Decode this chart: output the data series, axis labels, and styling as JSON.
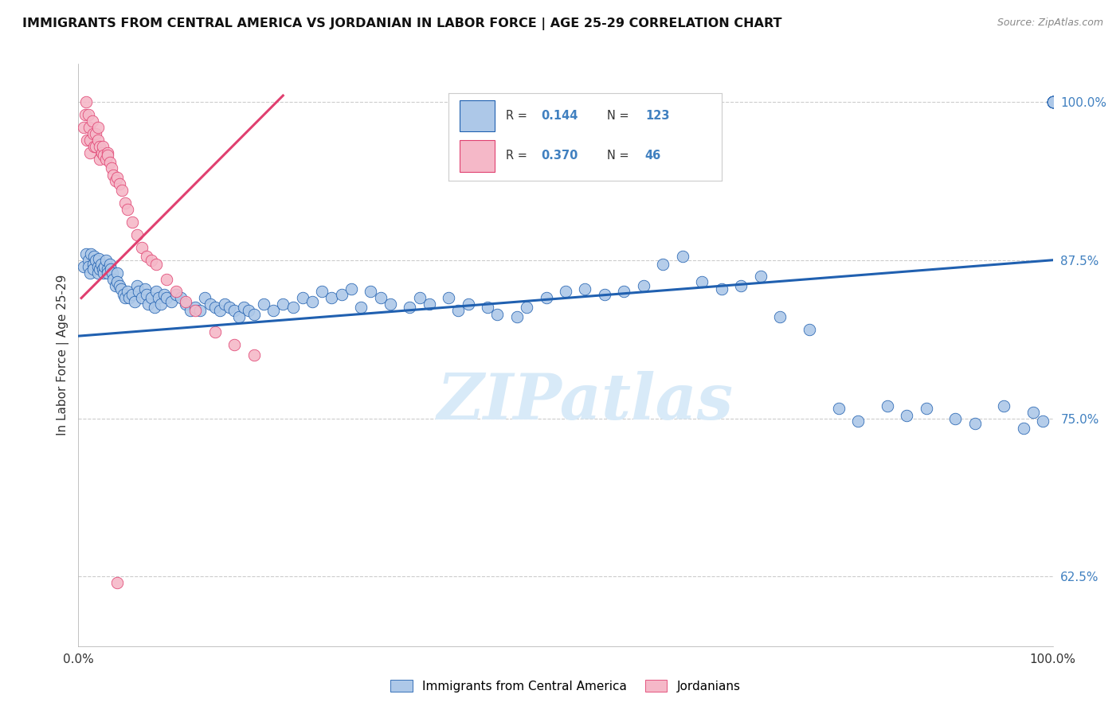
{
  "title": "IMMIGRANTS FROM CENTRAL AMERICA VS JORDANIAN IN LABOR FORCE | AGE 25-29 CORRELATION CHART",
  "source": "Source: ZipAtlas.com",
  "ylabel": "In Labor Force | Age 25-29",
  "xlim": [
    0.0,
    1.0
  ],
  "ylim": [
    0.57,
    1.03
  ],
  "yticks": [
    0.625,
    0.75,
    0.875,
    1.0
  ],
  "ytick_labels": [
    "62.5%",
    "75.0%",
    "87.5%",
    "100.0%"
  ],
  "xticks": [
    0.0,
    1.0
  ],
  "xtick_labels": [
    "0.0%",
    "100.0%"
  ],
  "color_blue": "#adc8e8",
  "color_pink": "#f5b8c8",
  "line_color_blue": "#2060b0",
  "line_color_pink": "#e04070",
  "tick_color": "#4080c0",
  "watermark_color": "#d8eaf8",
  "blue_line_x0": 0.0,
  "blue_line_x1": 1.0,
  "blue_line_y0": 0.815,
  "blue_line_y1": 0.875,
  "pink_line_x0": 0.003,
  "pink_line_x1": 0.21,
  "pink_line_y0": 0.845,
  "pink_line_y1": 1.005,
  "blue_x": [
    0.005,
    0.008,
    0.01,
    0.01,
    0.012,
    0.013,
    0.015,
    0.015,
    0.016,
    0.018,
    0.02,
    0.02,
    0.021,
    0.022,
    0.023,
    0.025,
    0.026,
    0.027,
    0.028,
    0.03,
    0.03,
    0.032,
    0.033,
    0.035,
    0.036,
    0.038,
    0.04,
    0.04,
    0.042,
    0.044,
    0.046,
    0.048,
    0.05,
    0.052,
    0.055,
    0.058,
    0.06,
    0.062,
    0.065,
    0.068,
    0.07,
    0.072,
    0.075,
    0.078,
    0.08,
    0.082,
    0.085,
    0.088,
    0.09,
    0.095,
    0.1,
    0.105,
    0.11,
    0.115,
    0.12,
    0.125,
    0.13,
    0.135,
    0.14,
    0.145,
    0.15,
    0.155,
    0.16,
    0.165,
    0.17,
    0.175,
    0.18,
    0.19,
    0.2,
    0.21,
    0.22,
    0.23,
    0.24,
    0.25,
    0.26,
    0.27,
    0.28,
    0.29,
    0.3,
    0.31,
    0.32,
    0.34,
    0.35,
    0.36,
    0.38,
    0.39,
    0.4,
    0.42,
    0.43,
    0.45,
    0.46,
    0.48,
    0.5,
    0.52,
    0.54,
    0.56,
    0.58,
    0.6,
    0.62,
    0.64,
    0.66,
    0.68,
    0.7,
    0.72,
    0.75,
    0.78,
    0.8,
    0.83,
    0.85,
    0.87,
    0.9,
    0.92,
    0.95,
    0.97,
    0.98,
    0.99,
    1.0,
    1.0,
    1.0,
    1.0,
    1.0,
    1.0,
    1.0,
    1.0,
    1.0,
    1.0,
    1.0,
    1.0
  ],
  "blue_y": [
    0.87,
    0.88,
    0.875,
    0.87,
    0.865,
    0.88,
    0.872,
    0.868,
    0.878,
    0.875,
    0.87,
    0.865,
    0.876,
    0.868,
    0.872,
    0.868,
    0.865,
    0.87,
    0.875,
    0.868,
    0.865,
    0.872,
    0.868,
    0.865,
    0.86,
    0.855,
    0.865,
    0.858,
    0.855,
    0.852,
    0.848,
    0.845,
    0.85,
    0.845,
    0.848,
    0.842,
    0.855,
    0.85,
    0.845,
    0.852,
    0.848,
    0.84,
    0.845,
    0.838,
    0.85,
    0.845,
    0.84,
    0.848,
    0.845,
    0.842,
    0.848,
    0.845,
    0.84,
    0.835,
    0.838,
    0.835,
    0.845,
    0.84,
    0.838,
    0.835,
    0.84,
    0.838,
    0.835,
    0.83,
    0.838,
    0.835,
    0.832,
    0.84,
    0.835,
    0.84,
    0.838,
    0.845,
    0.842,
    0.85,
    0.845,
    0.848,
    0.852,
    0.838,
    0.85,
    0.845,
    0.84,
    0.838,
    0.845,
    0.84,
    0.845,
    0.835,
    0.84,
    0.838,
    0.832,
    0.83,
    0.838,
    0.845,
    0.85,
    0.852,
    0.848,
    0.85,
    0.855,
    0.872,
    0.878,
    0.858,
    0.852,
    0.855,
    0.862,
    0.83,
    0.82,
    0.758,
    0.748,
    0.76,
    0.752,
    0.758,
    0.75,
    0.746,
    0.76,
    0.742,
    0.755,
    0.748,
    1.0,
    1.0,
    1.0,
    1.0,
    1.0,
    1.0,
    1.0,
    1.0,
    1.0,
    1.0,
    1.0,
    1.0
  ],
  "pink_x": [
    0.005,
    0.007,
    0.008,
    0.009,
    0.01,
    0.011,
    0.012,
    0.012,
    0.014,
    0.015,
    0.016,
    0.018,
    0.018,
    0.02,
    0.02,
    0.022,
    0.022,
    0.024,
    0.025,
    0.026,
    0.028,
    0.03,
    0.03,
    0.032,
    0.034,
    0.036,
    0.038,
    0.04,
    0.042,
    0.045,
    0.048,
    0.05,
    0.055,
    0.06,
    0.065,
    0.07,
    0.075,
    0.08,
    0.09,
    0.1,
    0.11,
    0.12,
    0.14,
    0.16,
    0.18,
    0.04
  ],
  "pink_y": [
    0.98,
    0.99,
    1.0,
    0.97,
    0.99,
    0.98,
    0.97,
    0.96,
    0.985,
    0.975,
    0.965,
    0.975,
    0.965,
    0.98,
    0.97,
    0.965,
    0.955,
    0.96,
    0.965,
    0.958,
    0.955,
    0.96,
    0.958,
    0.952,
    0.948,
    0.942,
    0.938,
    0.94,
    0.935,
    0.93,
    0.92,
    0.915,
    0.905,
    0.895,
    0.885,
    0.878,
    0.875,
    0.872,
    0.86,
    0.85,
    0.842,
    0.835,
    0.818,
    0.808,
    0.8,
    0.62
  ]
}
